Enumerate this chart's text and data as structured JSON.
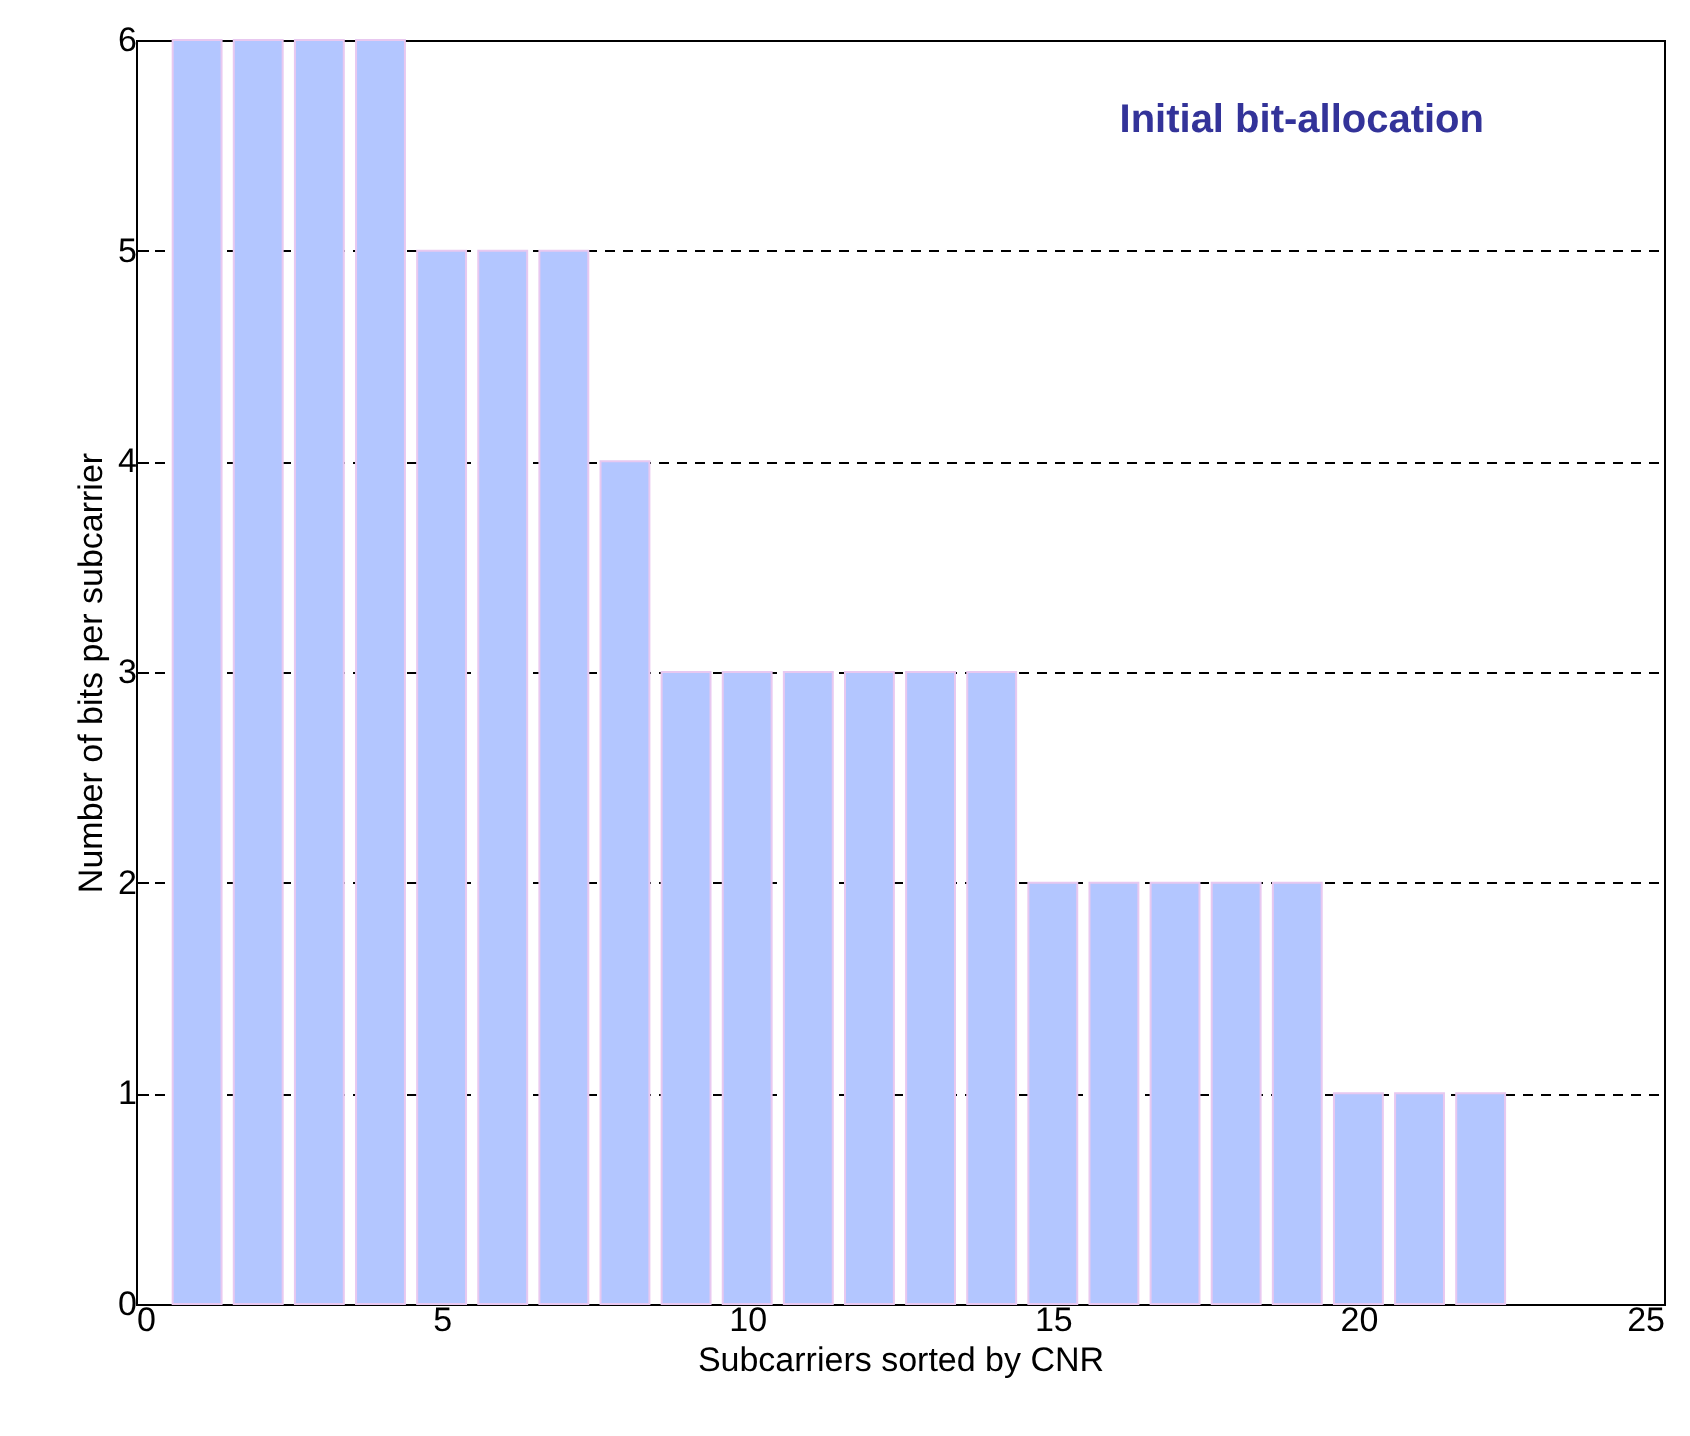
{
  "chart_data": {
    "type": "bar",
    "x": [
      1,
      2,
      3,
      4,
      5,
      6,
      7,
      8,
      9,
      10,
      11,
      12,
      13,
      14,
      15,
      16,
      17,
      18,
      19,
      20,
      21,
      22
    ],
    "values": [
      6,
      6,
      6,
      6,
      5,
      5,
      5,
      4,
      3,
      3,
      3,
      3,
      3,
      3,
      2,
      2,
      2,
      2,
      2,
      1,
      1,
      1
    ],
    "color": "#b3c6ff",
    "xlabel": "Subcarriers sorted by CNR",
    "ylabel": "Number of bits per subcarrier",
    "annotations": [
      "Initial bit-allocation"
    ],
    "xlim": [
      0,
      25
    ],
    "xticks": [
      0,
      5,
      10,
      15,
      20,
      25
    ],
    "ylim": [
      0,
      6
    ],
    "yticks": [
      0,
      1,
      2,
      3,
      4,
      5,
      6
    ],
    "grid": "y",
    "line_style": "dashed"
  }
}
